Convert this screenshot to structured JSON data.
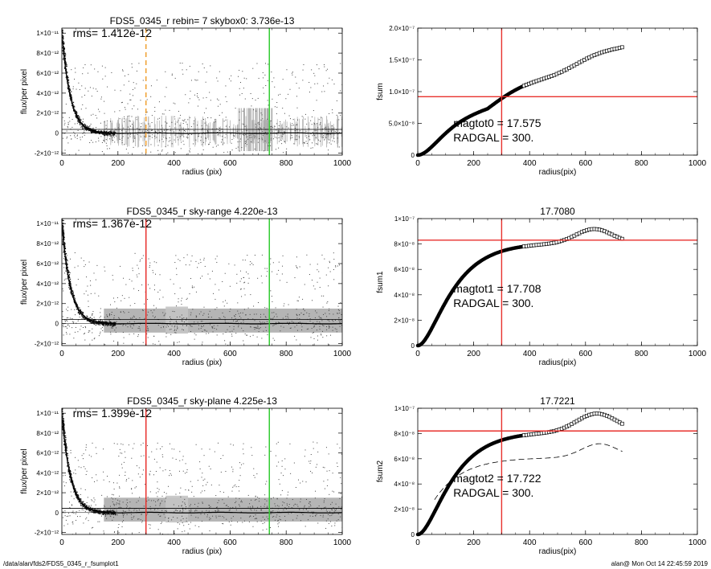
{
  "footer": {
    "path": "/data/alan/fds2/FDS5_0345_r_fsumplot1",
    "stamp": "alan@  Mon Oct 14 22:45:59 2019"
  },
  "colors": {
    "orange": "#f0a030",
    "red": "#e8312d",
    "green": "#33cc33",
    "sky": "#a8a8a8",
    "points": "#444444"
  },
  "chart_data": [
    {
      "type": "scatter",
      "title": "FDS5_0345_r rebin= 7    skybox0:  3.736e-13",
      "annotations": [
        "rms= 1.412e-12"
      ],
      "xlabel": "radius (pix)",
      "ylabel": "flux/per pixel",
      "xlim": [
        0,
        1000
      ],
      "ylim": [
        -2.2e-12,
        1.05e-11
      ],
      "xticks": [
        0,
        200,
        400,
        600,
        800,
        1000
      ],
      "yticks": [
        -2e-12,
        0,
        2e-12,
        4e-12,
        6e-12,
        8e-12,
        1e-11
      ],
      "ytick_labels": [
        "-2×10⁻¹²",
        "0",
        "2×10⁻¹²",
        "4×10⁻¹²",
        "6×10⁻¹²",
        "8×10⁻¹²",
        "1×10⁻¹¹"
      ],
      "sky_level": 3.736e-13,
      "vlines": [
        {
          "x": 300,
          "color": "orange",
          "style": "dashed"
        },
        {
          "x": 740,
          "color": "green",
          "style": "solid"
        }
      ],
      "sky_style": "bars",
      "profile": {
        "peak": 1e-11,
        "scale": 30
      }
    },
    {
      "type": "line",
      "title": "",
      "annotations": [
        "magtot0 =  17.575",
        "RADGAL =    300."
      ],
      "xlabel": "radius(pix)",
      "ylabel": "fsum",
      "xlim": [
        0,
        1000
      ],
      "ylim": [
        0,
        2e-07
      ],
      "xticks": [
        0,
        200,
        400,
        600,
        800,
        1000
      ],
      "yticks": [
        0,
        5e-08,
        1e-07,
        1.5e-07,
        2e-07
      ],
      "ytick_labels": [
        "0",
        "5.0×10⁻⁸",
        "1.0×10⁻⁷",
        "1.5×10⁻⁷",
        "2.0×10⁻⁷"
      ],
      "vline": 300,
      "hline": 9.2e-08,
      "curve": {
        "plateau": 9e-08,
        "scale": 105,
        "slope": 1.7e-10,
        "rmax": 735,
        "wiggle": 0.02
      }
    },
    {
      "type": "scatter",
      "title": "FDS5_0345_r sky-range  4.220e-13",
      "annotations": [
        "rms= 1.367e-12"
      ],
      "xlabel": "radius (pix)",
      "ylabel": "flux/per pixel",
      "xlim": [
        0,
        1000
      ],
      "ylim": [
        -2.2e-12,
        1.05e-11
      ],
      "xticks": [
        0,
        200,
        400,
        600,
        800,
        1000
      ],
      "yticks": [
        -2e-12,
        0,
        2e-12,
        4e-12,
        6e-12,
        8e-12,
        1e-11
      ],
      "ytick_labels": [
        "-2×10⁻¹²",
        "0",
        "2×10⁻¹²",
        "4×10⁻¹²",
        "6×10⁻¹²",
        "8×10⁻¹²",
        "1×10⁻¹¹"
      ],
      "sky_level": 4.22e-13,
      "vlines": [
        {
          "x": 300,
          "color": "red",
          "style": "solid"
        },
        {
          "x": 740,
          "color": "green",
          "style": "solid"
        }
      ],
      "sky_style": "band",
      "profile": {
        "peak": 1e-11,
        "scale": 30
      }
    },
    {
      "type": "line",
      "title": "17.7080",
      "annotations": [
        "magtot1 =  17.708",
        "RADGAL =    300."
      ],
      "xlabel": "radius(pix)",
      "ylabel": "fsum1",
      "xlim": [
        0,
        1000
      ],
      "ylim": [
        0,
        1e-07
      ],
      "xticks": [
        0,
        200,
        400,
        600,
        800,
        1000
      ],
      "yticks": [
        0,
        2e-08,
        4e-08,
        6e-08,
        8e-08,
        1e-07
      ],
      "ytick_labels": [
        "0",
        "2×10⁻⁸",
        "4×10⁻⁸",
        "6×10⁻⁸",
        "8×10⁻⁸",
        "1×10⁻⁷"
      ],
      "vline": 300,
      "hline": 8.3e-08,
      "curve": {
        "plateau": 8.1e-08,
        "scale": 95,
        "slope": 0,
        "rmax": 735,
        "bump": {
          "center": 630,
          "width": 90,
          "amp": 1.1e-08
        }
      }
    },
    {
      "type": "scatter",
      "title": "FDS5_0345_r sky-plane  4.225e-13",
      "annotations": [
        "rms= 1.399e-12"
      ],
      "xlabel": "radius (pix)",
      "ylabel": "flux/per pixel",
      "xlim": [
        0,
        1000
      ],
      "ylim": [
        -2.2e-12,
        1.05e-11
      ],
      "xticks": [
        0,
        200,
        400,
        600,
        800,
        1000
      ],
      "yticks": [
        -2e-12,
        0,
        2e-12,
        4e-12,
        6e-12,
        8e-12,
        1e-11
      ],
      "ytick_labels": [
        "-2×10⁻¹²",
        "0",
        "2×10⁻¹²",
        "4×10⁻¹²",
        "6×10⁻¹²",
        "8×10⁻¹²",
        "1×10⁻¹¹"
      ],
      "sky_level": 4.225e-13,
      "vlines": [
        {
          "x": 300,
          "color": "red",
          "style": "solid"
        },
        {
          "x": 740,
          "color": "green",
          "style": "solid"
        }
      ],
      "sky_style": "band",
      "profile": {
        "peak": 1e-11,
        "scale": 30
      }
    },
    {
      "type": "line",
      "title": "17.7221",
      "annotations": [
        "magtot2 =  17.722",
        "RADGAL =    300."
      ],
      "xlabel": "radius(pix)",
      "ylabel": "fsum2",
      "xlim": [
        0,
        1000
      ],
      "ylim": [
        0,
        1e-07
      ],
      "xticks": [
        0,
        200,
        400,
        600,
        800,
        1000
      ],
      "yticks": [
        0,
        2e-08,
        4e-08,
        6e-08,
        8e-08,
        1e-07
      ],
      "ytick_labels": [
        "0",
        "2×10⁻⁸",
        "4×10⁻⁸",
        "6×10⁻⁸",
        "8×10⁻⁸",
        "1×10⁻⁷"
      ],
      "vline": 300,
      "hline": 8.2e-08,
      "curve": {
        "plateau": 8.15e-08,
        "scale": 95,
        "slope": 0,
        "rmax": 735,
        "bump": {
          "center": 640,
          "width": 100,
          "amp": 1.45e-08
        }
      },
      "dashed_curve": {
        "plateau": 6.1e-08,
        "scale": 100,
        "rmax": 735,
        "bump": {
          "center": 650,
          "width": 90,
          "amp": 1.1e-08
        }
      }
    }
  ]
}
